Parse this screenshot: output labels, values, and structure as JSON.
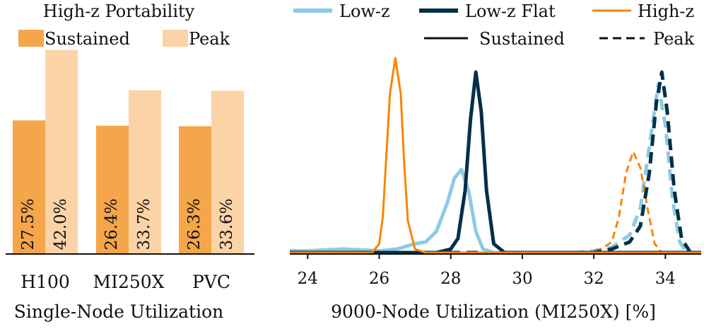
{
  "chart_data": [
    {
      "type": "bar",
      "title": "High-z Portability",
      "xlabel": "Single-Node Utilization",
      "ylabel": "",
      "ylim": [
        0,
        45
      ],
      "categories": [
        "H100",
        "MI250X",
        "PVC"
      ],
      "series": [
        {
          "name": "Sustained",
          "color": "#f5a54a",
          "values": [
            27.5,
            26.4,
            26.3
          ],
          "labels": [
            "27.5%",
            "26.4%",
            "26.3%"
          ]
        },
        {
          "name": "Peak",
          "color": "#fcd3a6",
          "values": [
            42.0,
            33.7,
            33.6
          ],
          "labels": [
            "42.0%",
            "33.7%",
            "33.6%"
          ]
        }
      ]
    },
    {
      "type": "line",
      "title": "",
      "xlabel": "9000-Node Utilization (MI250X) [%]",
      "ylabel": "",
      "xlim": [
        23.5,
        35
      ],
      "xticks": [
        24,
        26,
        28,
        30,
        32,
        34
      ],
      "legend": {
        "series": [
          {
            "name": "Low-z",
            "color": "#8ecae6"
          },
          {
            "name": "Low-z Flat",
            "color": "#023047"
          },
          {
            "name": "High-z",
            "color": "#fb8500"
          }
        ],
        "styles": [
          {
            "name": "Sustained",
            "dash": "solid"
          },
          {
            "name": "Peak",
            "dash": "dashed"
          }
        ]
      },
      "series": [
        {
          "name": "Low-z",
          "style": "Sustained",
          "color": "#8ecae6",
          "x": [
            23.5,
            24.0,
            24.5,
            25.0,
            25.5,
            26.0,
            26.5,
            27.0,
            27.3,
            27.6,
            27.9,
            28.1,
            28.3,
            28.5,
            28.7,
            28.9,
            29.2,
            30.0,
            35.0
          ],
          "y": [
            0.01,
            0.01,
            0.015,
            0.02,
            0.015,
            0.01,
            0.02,
            0.05,
            0.06,
            0.12,
            0.28,
            0.42,
            0.47,
            0.35,
            0.12,
            0.02,
            0.0,
            0.0,
            0.0
          ]
        },
        {
          "name": "Low-z Flat",
          "style": "Sustained",
          "color": "#023047",
          "x": [
            23.5,
            27.6,
            28.0,
            28.2,
            28.4,
            28.55,
            28.7,
            28.85,
            29.0,
            29.2,
            29.5,
            35.0
          ],
          "y": [
            0.0,
            0.0,
            0.02,
            0.08,
            0.35,
            0.75,
            1.02,
            0.8,
            0.35,
            0.05,
            0.0,
            0.0
          ]
        },
        {
          "name": "High-z",
          "style": "Sustained",
          "color": "#fb8500",
          "x": [
            23.5,
            25.8,
            26.0,
            26.1,
            26.2,
            26.3,
            26.45,
            26.6,
            26.7,
            26.8,
            27.0,
            27.3,
            35.0
          ],
          "y": [
            0.0,
            0.0,
            0.05,
            0.2,
            0.55,
            0.9,
            1.1,
            0.9,
            0.5,
            0.18,
            0.02,
            0.0,
            0.0
          ]
        },
        {
          "name": "Low-z",
          "style": "Peak",
          "color": "#8ecae6",
          "x": [
            23.5,
            31.5,
            32.0,
            32.5,
            33.0,
            33.3,
            33.55,
            33.8,
            34.0,
            34.2,
            34.4,
            34.6,
            35.0
          ],
          "y": [
            0.0,
            0.0,
            0.01,
            0.03,
            0.1,
            0.25,
            0.6,
            0.95,
            0.72,
            0.3,
            0.06,
            0.0,
            0.0
          ]
        },
        {
          "name": "Low-z Flat",
          "style": "Peak",
          "color": "#023047",
          "x": [
            23.5,
            32.0,
            32.5,
            33.0,
            33.3,
            33.55,
            33.75,
            33.9,
            34.05,
            34.25,
            34.45,
            34.7,
            35.0
          ],
          "y": [
            0.0,
            0.0,
            0.02,
            0.06,
            0.15,
            0.45,
            0.85,
            1.02,
            0.8,
            0.35,
            0.08,
            0.0,
            0.0
          ]
        },
        {
          "name": "High-z",
          "style": "Peak",
          "color": "#fb8500",
          "x": [
            23.5,
            31.8,
            32.2,
            32.5,
            32.7,
            32.9,
            33.1,
            33.3,
            33.5,
            33.7,
            33.9,
            35.0
          ],
          "y": [
            0.0,
            0.0,
            0.02,
            0.06,
            0.2,
            0.45,
            0.57,
            0.48,
            0.25,
            0.05,
            0.0,
            0.0
          ]
        }
      ]
    }
  ]
}
